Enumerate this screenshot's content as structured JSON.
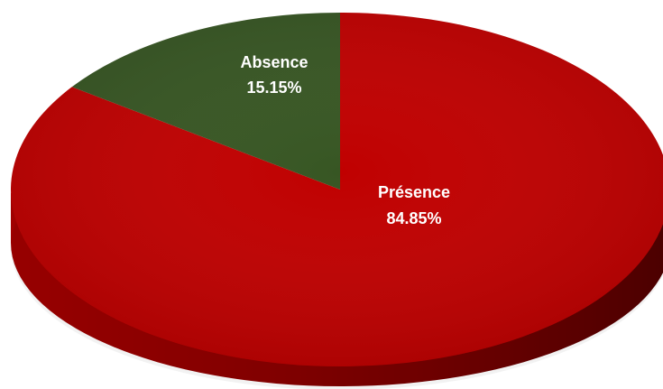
{
  "chart_data": {
    "type": "pie",
    "title": "",
    "slices": [
      {
        "label": "Présence",
        "value": 84.85,
        "display": "84.85%",
        "color": "#c00000"
      },
      {
        "label": "Absence",
        "value": 15.15,
        "display": "15.15%",
        "color": "#375623"
      }
    ],
    "start_angle": "12 o'clock",
    "direction": "clockwise",
    "style": "3d",
    "legend": "none",
    "data_labels": "inside"
  }
}
